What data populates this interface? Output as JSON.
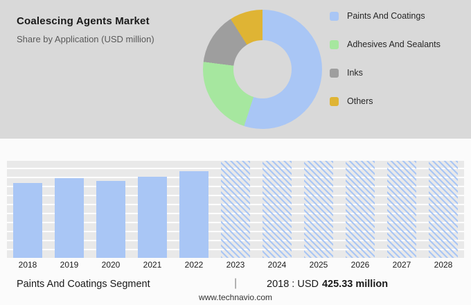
{
  "header": {
    "title": "Coalescing Agents Market",
    "subtitle": "Share by Application (USD million)"
  },
  "legend": [
    {
      "label": "Paints And Coatings",
      "color": "#a9c6f5"
    },
    {
      "label": "Adhesives And Sealants",
      "color": "#a6e79f"
    },
    {
      "label": "Inks",
      "color": "#9e9e9e"
    },
    {
      "label": "Others",
      "color": "#dfb434"
    }
  ],
  "chart_data": [
    {
      "type": "pie",
      "title": "Share by Application (USD million)",
      "donut": true,
      "legend_position": "right",
      "labels": [
        "Paints And Coatings",
        "Adhesives And Sealants",
        "Inks",
        "Others"
      ],
      "values_pct": [
        55,
        22,
        14,
        9
      ],
      "colors": [
        "#a9c6f5",
        "#a6e79f",
        "#9e9e9e",
        "#dfb434"
      ]
    },
    {
      "type": "bar",
      "title": "Paints And Coatings Segment (USD million)",
      "categories": [
        "2018",
        "2019",
        "2020",
        "2021",
        "2022",
        "2023",
        "2024",
        "2025",
        "2026",
        "2027",
        "2028"
      ],
      "values": [
        425.33,
        452,
        436,
        461,
        492,
        null,
        null,
        null,
        null,
        null,
        null
      ],
      "forecast_years": [
        "2023",
        "2024",
        "2025",
        "2026",
        "2027",
        "2028"
      ],
      "forecast_style": "hatched",
      "bar_color": "#a9c6f5",
      "xlabel": "",
      "ylabel": "",
      "ylim": [
        0,
        550
      ],
      "grid": "horizontal"
    }
  ],
  "footer": {
    "segment_label": "Paints And Coatings Segment",
    "separator": "|",
    "stat_prefix": "2018 : USD",
    "stat_value": "425.33 million",
    "website": "www.technavio.com"
  }
}
